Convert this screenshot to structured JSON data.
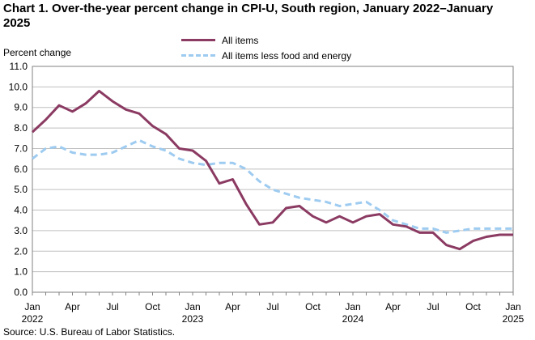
{
  "chart_data": {
    "type": "line",
    "title": "Chart 1. Over-the-year percent change in CPI-U, South region, January 2022–January 2025",
    "ylabel": "Percent change",
    "xlabel": "",
    "ylim": [
      0,
      11
    ],
    "yticks": [
      "0.0",
      "1.0",
      "2.0",
      "3.0",
      "4.0",
      "5.0",
      "6.0",
      "7.0",
      "8.0",
      "9.0",
      "10.0",
      "11.0"
    ],
    "x_tick_labels": [
      {
        "month": "Jan",
        "year": "2022",
        "index": 0
      },
      {
        "month": "Apr",
        "year": "",
        "index": 3
      },
      {
        "month": "Jul",
        "year": "",
        "index": 6
      },
      {
        "month": "Oct",
        "year": "",
        "index": 9
      },
      {
        "month": "Jan",
        "year": "2023",
        "index": 12
      },
      {
        "month": "Apr",
        "year": "",
        "index": 15
      },
      {
        "month": "Jul",
        "year": "",
        "index": 18
      },
      {
        "month": "Oct",
        "year": "",
        "index": 21
      },
      {
        "month": "Jan",
        "year": "2024",
        "index": 24
      },
      {
        "month": "Apr",
        "year": "",
        "index": 27
      },
      {
        "month": "Jul",
        "year": "",
        "index": 30
      },
      {
        "month": "Oct",
        "year": "",
        "index": 33
      },
      {
        "month": "Jan",
        "year": "2025",
        "index": 36
      }
    ],
    "x": [
      "Jan 2022",
      "Feb 2022",
      "Mar 2022",
      "Apr 2022",
      "May 2022",
      "Jun 2022",
      "Jul 2022",
      "Aug 2022",
      "Sep 2022",
      "Oct 2022",
      "Nov 2022",
      "Dec 2022",
      "Jan 2023",
      "Feb 2023",
      "Mar 2023",
      "Apr 2023",
      "May 2023",
      "Jun 2023",
      "Jul 2023",
      "Aug 2023",
      "Sep 2023",
      "Oct 2023",
      "Nov 2023",
      "Dec 2023",
      "Jan 2024",
      "Feb 2024",
      "Mar 2024",
      "Apr 2024",
      "May 2024",
      "Jun 2024",
      "Jul 2024",
      "Aug 2024",
      "Sep 2024",
      "Oct 2024",
      "Nov 2024",
      "Dec 2024",
      "Jan 2025"
    ],
    "series": [
      {
        "name": "All items",
        "color": "#8b3a62",
        "dash": "solid",
        "values": [
          7.8,
          8.4,
          9.1,
          8.8,
          9.2,
          9.8,
          9.3,
          8.9,
          8.7,
          8.1,
          7.7,
          7.0,
          6.9,
          6.4,
          5.3,
          5.5,
          4.3,
          3.3,
          3.4,
          4.1,
          4.2,
          3.7,
          3.4,
          3.7,
          3.4,
          3.7,
          3.8,
          3.3,
          3.2,
          2.9,
          2.9,
          2.3,
          2.1,
          2.5,
          2.7,
          2.8,
          2.8
        ]
      },
      {
        "name": "All items less food and energy",
        "color": "#9ecbf0",
        "dash": "dashed",
        "values": [
          6.5,
          7.0,
          7.1,
          6.8,
          6.7,
          6.7,
          6.8,
          7.1,
          7.4,
          7.1,
          6.9,
          6.5,
          6.3,
          6.2,
          6.3,
          6.3,
          6.0,
          5.4,
          5.0,
          4.8,
          4.6,
          4.5,
          4.4,
          4.2,
          4.3,
          4.4,
          4.0,
          3.5,
          3.3,
          3.1,
          3.1,
          2.9,
          3.0,
          3.1,
          3.1,
          3.1,
          3.1
        ]
      }
    ],
    "grid": true,
    "legend_position": "top-center"
  },
  "source": "Source: U.S. Bureau of Labor Statistics."
}
